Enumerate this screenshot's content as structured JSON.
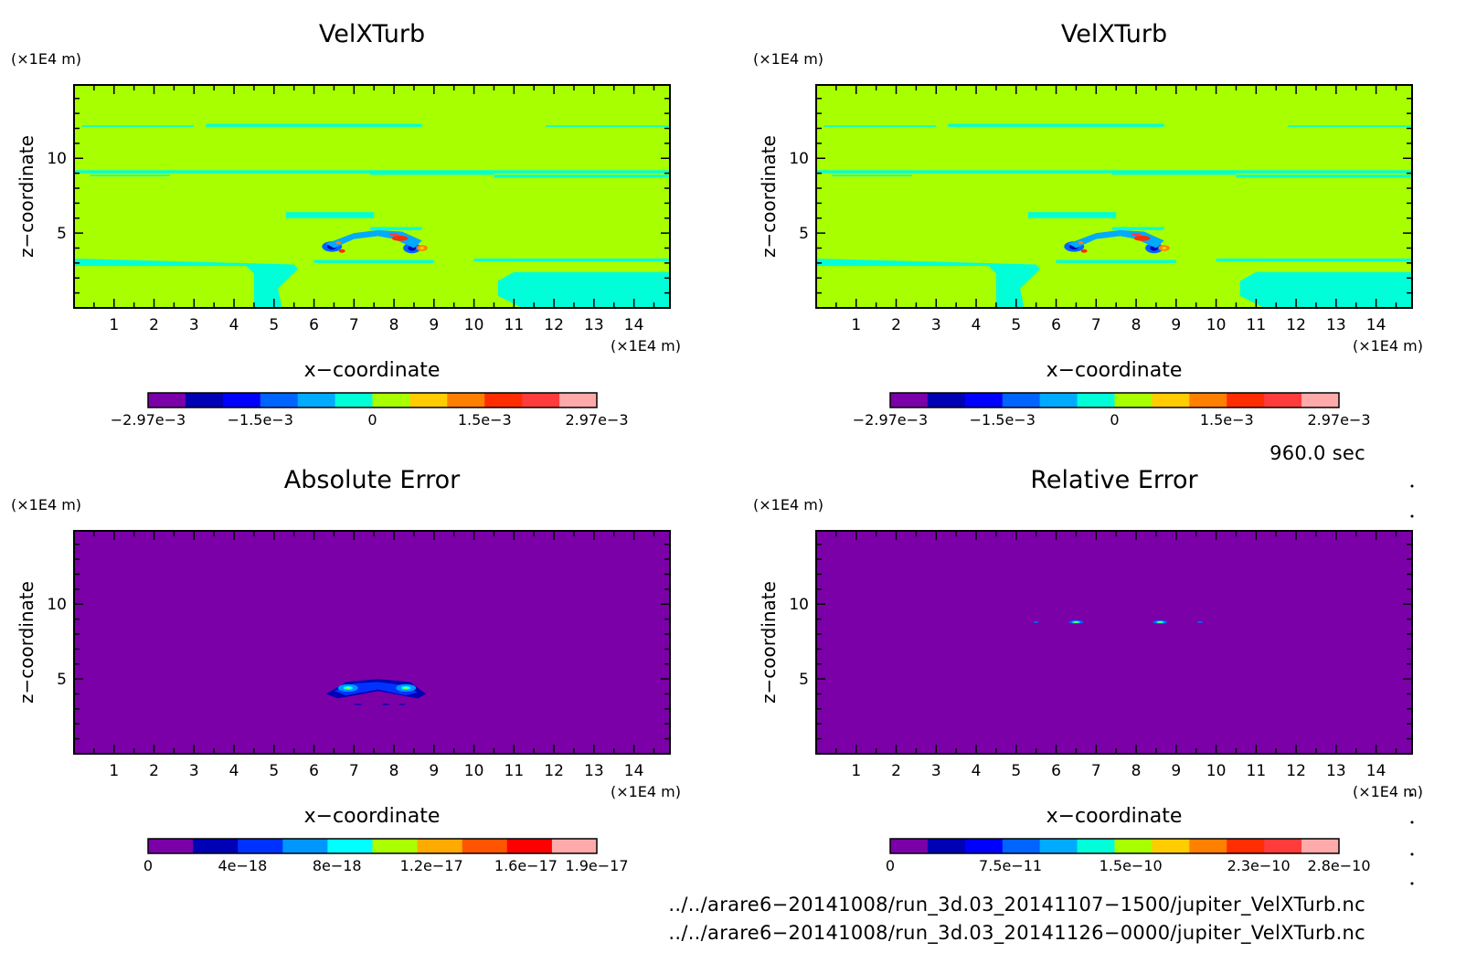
{
  "chart_data": [
    {
      "type": "heatmap",
      "title": "VelXTurb",
      "xlabel": "x−coordinate",
      "ylabel": "z−coordinate",
      "x_unit": "(×1E4 m)",
      "y_unit": "(×1E4 m)",
      "xlim": [
        0,
        14.9
      ],
      "ylim": [
        0,
        14.9
      ],
      "x_ticks": [
        1,
        2,
        3,
        4,
        5,
        6,
        7,
        8,
        9,
        10,
        11,
        12,
        13,
        14
      ],
      "y_ticks": [
        5,
        10
      ],
      "field": "velocity",
      "colorbar": {
        "colors": [
          "#7b00a8",
          "#0000b4",
          "#0000ff",
          "#0064ff",
          "#00aaff",
          "#00ffd8",
          "#a8ff00",
          "#ffcc00",
          "#ff7f00",
          "#ff2d00",
          "#ff3c3c",
          "#ffaaaa"
        ],
        "labels": [
          "−2.97e−3",
          "−1.5e−3",
          "0",
          "1.5e−3",
          "2.97e−3"
        ],
        "label_positions": [
          0,
          0.25,
          0.5,
          0.75,
          1
        ]
      }
    },
    {
      "type": "heatmap",
      "title": "VelXTurb",
      "xlabel": "x−coordinate",
      "ylabel": "z−coordinate",
      "x_unit": "(×1E4 m)",
      "y_unit": "(×1E4 m)",
      "xlim": [
        0,
        14.9
      ],
      "ylim": [
        0,
        14.9
      ],
      "x_ticks": [
        1,
        2,
        3,
        4,
        5,
        6,
        7,
        8,
        9,
        10,
        11,
        12,
        13,
        14
      ],
      "y_ticks": [
        5,
        10
      ],
      "field": "velocity",
      "colorbar": {
        "colors": [
          "#7b00a8",
          "#0000b4",
          "#0000ff",
          "#0064ff",
          "#00aaff",
          "#00ffd8",
          "#a8ff00",
          "#ffcc00",
          "#ff7f00",
          "#ff2d00",
          "#ff3c3c",
          "#ffaaaa"
        ],
        "labels": [
          "−2.97e−3",
          "−1.5e−3",
          "0",
          "1.5e−3",
          "2.97e−3"
        ],
        "label_positions": [
          0,
          0.25,
          0.5,
          0.75,
          1
        ]
      }
    },
    {
      "type": "heatmap",
      "title": "Absolute Error",
      "xlabel": "x−coordinate",
      "ylabel": "z−coordinate",
      "x_unit": "(×1E4 m)",
      "y_unit": "(×1E4 m)",
      "xlim": [
        0,
        14.9
      ],
      "ylim": [
        0,
        14.9
      ],
      "x_ticks": [
        1,
        2,
        3,
        4,
        5,
        6,
        7,
        8,
        9,
        10,
        11,
        12,
        13,
        14
      ],
      "y_ticks": [
        5,
        10
      ],
      "field": "abs_error",
      "colorbar": {
        "colors": [
          "#7b00a8",
          "#0000b4",
          "#0032ff",
          "#0096ff",
          "#00ffff",
          "#aaff00",
          "#ffaa00",
          "#ff5500",
          "#ff0000",
          "#ffaaaa"
        ],
        "labels": [
          "0",
          "4e−18",
          "8e−18",
          "1.2e−17",
          "1.6e−17",
          "1.9e−17"
        ],
        "label_positions": [
          0,
          0.2105,
          0.421,
          0.6316,
          0.842,
          1
        ]
      }
    },
    {
      "type": "heatmap",
      "title": "Relative Error",
      "xlabel": "x−coordinate",
      "ylabel": "z−coordinate",
      "x_unit": "(×1E4 m)",
      "y_unit": "(×1E4 m)",
      "xlim": [
        0,
        14.9
      ],
      "ylim": [
        0,
        14.9
      ],
      "x_ticks": [
        1,
        2,
        3,
        4,
        5,
        6,
        7,
        8,
        9,
        10,
        11,
        12,
        13,
        14
      ],
      "y_ticks": [
        5,
        10
      ],
      "field": "rel_error",
      "colorbar": {
        "colors": [
          "#7b00a8",
          "#0000b4",
          "#0000ff",
          "#0064ff",
          "#00aaff",
          "#00ffd8",
          "#a8ff00",
          "#ffcc00",
          "#ff7f00",
          "#ff2d00",
          "#ff3c3c",
          "#ffaaaa"
        ],
        "labels": [
          "0",
          "7.5e−11",
          "1.5e−10",
          "2.3e−10",
          "2.8e−10"
        ],
        "label_positions": [
          0,
          0.268,
          0.536,
          0.821,
          1
        ]
      }
    }
  ],
  "time_label": "960.0 sec",
  "file_paths": [
    "../../arare6−20141008/run_3d.03_20141107−1500/jupiter_VelXTurb.nc",
    "../../arare6−20141008/run_3d.03_20141126−0000/jupiter_VelXTurb.nc"
  ]
}
